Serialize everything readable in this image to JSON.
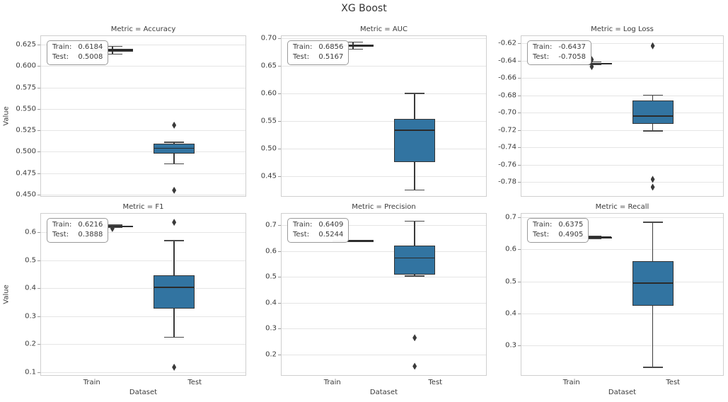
{
  "figure": {
    "title": "XG Boost",
    "xlabel": "Dataset",
    "ylabel": "Value",
    "categories": [
      "Train",
      "Test"
    ],
    "grid": "horizontal",
    "legend": "none",
    "colors": {
      "box_fill": "#3274a1",
      "box_edge": "#343434",
      "whisker": "#3a3a3a",
      "outlier": "#3a3a3a",
      "gridline": "#e5e5e5",
      "spine": "#cfcfcf",
      "text": "#3a3a3a",
      "annotation_border": "#9a9a9a",
      "annotation_bg": "#ffffff"
    }
  },
  "chart_data": [
    {
      "type": "box",
      "title": "Metric = Accuracy",
      "categories": [
        "Train",
        "Test"
      ],
      "ylim": [
        0.4475,
        0.6357
      ],
      "ytick_values": [
        0.625,
        0.6,
        0.575,
        0.55,
        0.525,
        0.5,
        0.475,
        0.45
      ],
      "ytick_labels": [
        "0.625",
        "0.600",
        "0.575",
        "0.550",
        "0.525",
        "0.500",
        "0.475",
        "0.450"
      ],
      "annotation": {
        "lines": [
          {
            "label": "Train:",
            "value": "0.6184"
          },
          {
            "label": "Test:",
            "value": "0.5008"
          }
        ]
      },
      "series": [
        {
          "name": "Train",
          "whislo": 0.614,
          "q1": 0.617,
          "med": 0.6184,
          "q3": 0.62,
          "whishi": 0.623,
          "outliers": []
        },
        {
          "name": "Test",
          "whislo": 0.486,
          "q1": 0.498,
          "med": 0.504,
          "q3": 0.509,
          "whishi": 0.511,
          "outliers": [
            0.531,
            0.455
          ]
        }
      ]
    },
    {
      "type": "box",
      "title": "Metric = AUC",
      "categories": [
        "Train",
        "Test"
      ],
      "ylim": [
        0.4128,
        0.7051
      ],
      "ytick_values": [
        0.7,
        0.65,
        0.6,
        0.55,
        0.5,
        0.45
      ],
      "ytick_labels": [
        "0.70",
        "0.65",
        "0.60",
        "0.55",
        "0.50",
        "0.45"
      ],
      "annotation": {
        "lines": [
          {
            "label": "Train:",
            "value": "0.6856"
          },
          {
            "label": "Test:",
            "value": "0.5167"
          }
        ]
      },
      "series": [
        {
          "name": "Train",
          "whislo": 0.68,
          "q1": 0.684,
          "med": 0.6856,
          "q3": 0.688,
          "whishi": 0.693,
          "outliers": []
        },
        {
          "name": "Test",
          "whislo": 0.425,
          "q1": 0.475,
          "med": 0.533,
          "q3": 0.554,
          "whishi": 0.6,
          "outliers": []
        }
      ]
    },
    {
      "type": "box",
      "title": "Metric = Log Loss",
      "categories": [
        "Train",
        "Test"
      ],
      "ylim": [
        -0.7971,
        -0.611
      ],
      "ytick_values": [
        -0.62,
        -0.64,
        -0.66,
        -0.68,
        -0.7,
        -0.72,
        -0.74,
        -0.76,
        -0.78
      ],
      "ytick_labels": [
        "-0.62",
        "-0.64",
        "-0.66",
        "-0.68",
        "-0.70",
        "-0.72",
        "-0.74",
        "-0.76",
        "-0.78"
      ],
      "annotation": {
        "lines": [
          {
            "label": "Train:",
            "value": "-0.6437"
          },
          {
            "label": "Test:",
            "value": "-0.7058"
          }
        ]
      },
      "series": [
        {
          "name": "Train",
          "whislo": -0.645,
          "q1": -0.6445,
          "med": -0.6437,
          "q3": -0.6425,
          "whishi": -0.6415,
          "outliers": [
            -0.639,
            -0.647
          ]
        },
        {
          "name": "Test",
          "whislo": -0.721,
          "q1": -0.713,
          "med": -0.704,
          "q3": -0.686,
          "whishi": -0.68,
          "outliers": [
            -0.623,
            -0.777,
            -0.786
          ]
        }
      ]
    },
    {
      "type": "box",
      "title": "Metric = F1",
      "categories": [
        "Train",
        "Test"
      ],
      "ylim": [
        0.0874,
        0.6682
      ],
      "ytick_values": [
        0.6,
        0.5,
        0.4,
        0.3,
        0.2,
        0.1
      ],
      "ytick_labels": [
        "0.6",
        "0.5",
        "0.4",
        "0.3",
        "0.2",
        "0.1"
      ],
      "annotation": {
        "lines": [
          {
            "label": "Train:",
            "value": "0.6216"
          },
          {
            "label": "Test:",
            "value": "0.3888"
          }
        ]
      },
      "series": [
        {
          "name": "Train",
          "whislo": 0.617,
          "q1": 0.62,
          "med": 0.6216,
          "q3": 0.6235,
          "whishi": 0.625,
          "outliers": [
            0.613
          ]
        },
        {
          "name": "Test",
          "whislo": 0.225,
          "q1": 0.328,
          "med": 0.404,
          "q3": 0.447,
          "whishi": 0.57,
          "outliers": [
            0.635,
            0.118
          ]
        }
      ]
    },
    {
      "type": "box",
      "title": "Metric = Precision",
      "categories": [
        "Train",
        "Test"
      ],
      "ylim": [
        0.118,
        0.7464
      ],
      "ytick_values": [
        0.7,
        0.6,
        0.5,
        0.4,
        0.3,
        0.2
      ],
      "ytick_labels": [
        "0.7",
        "0.6",
        "0.5",
        "0.4",
        "0.3",
        "0.2"
      ],
      "annotation": {
        "lines": [
          {
            "label": "Train:",
            "value": "0.6409"
          },
          {
            "label": "Test:",
            "value": "0.5244"
          }
        ]
      },
      "series": [
        {
          "name": "Train",
          "whislo": 0.64,
          "q1": 0.6405,
          "med": 0.6409,
          "q3": 0.6413,
          "whishi": 0.6418,
          "outliers": []
        },
        {
          "name": "Test",
          "whislo": 0.503,
          "q1": 0.508,
          "med": 0.573,
          "q3": 0.62,
          "whishi": 0.715,
          "outliers": [
            0.265,
            0.155
          ]
        }
      ]
    },
    {
      "type": "box",
      "title": "Metric = Recall",
      "categories": [
        "Train",
        "Test"
      ],
      "ylim": [
        0.205,
        0.7133
      ],
      "ytick_values": [
        0.7,
        0.6,
        0.5,
        0.4,
        0.3
      ],
      "ytick_labels": [
        "0.7",
        "0.6",
        "0.5",
        "0.4",
        "0.3"
      ],
      "annotation": {
        "lines": [
          {
            "label": "Train:",
            "value": "0.6375"
          },
          {
            "label": "Test:",
            "value": "0.4905"
          }
        ]
      },
      "series": [
        {
          "name": "Train",
          "whislo": 0.633,
          "q1": 0.636,
          "med": 0.6375,
          "q3": 0.639,
          "whishi": 0.641,
          "outliers": []
        },
        {
          "name": "Test",
          "whislo": 0.232,
          "q1": 0.423,
          "med": 0.494,
          "q3": 0.563,
          "whishi": 0.685,
          "outliers": []
        }
      ]
    }
  ]
}
